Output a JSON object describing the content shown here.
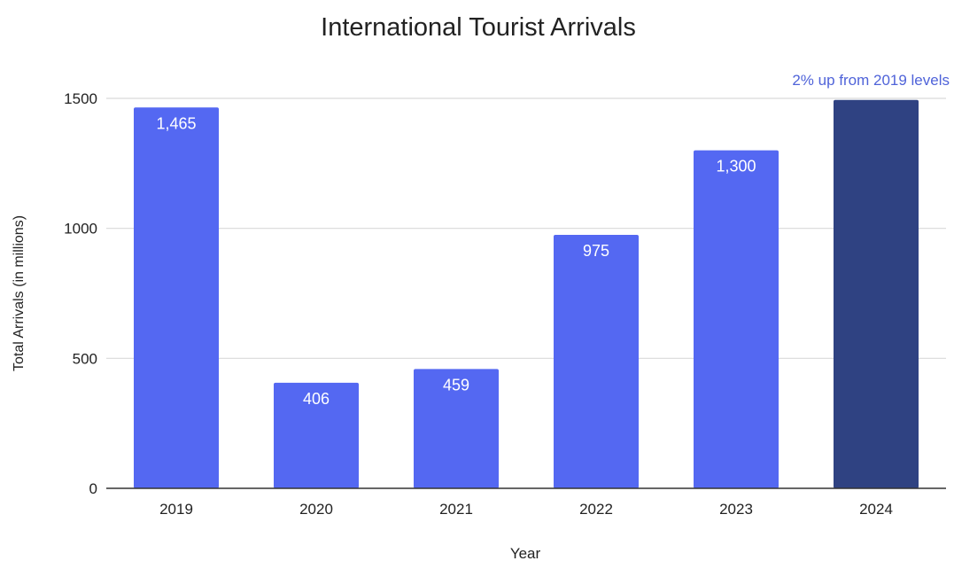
{
  "chart_data": {
    "type": "bar",
    "title": "International Tourist Arrivals",
    "xlabel": "Year",
    "ylabel": "Total Arrivals (in millions)",
    "categories": [
      "2019",
      "2020",
      "2021",
      "2022",
      "2023",
      "2024"
    ],
    "values": [
      1465,
      406,
      459,
      975,
      1300,
      1494
    ],
    "data_labels": [
      "1,465",
      "406",
      "459",
      "975",
      "1,300",
      ""
    ],
    "ylim": [
      0,
      1500
    ],
    "yticks": [
      0,
      500,
      1000,
      1500
    ],
    "grid": true,
    "colors": {
      "bar": "#5468f2",
      "highlight_bar": "#2f4282",
      "annotation": "#4f63d9",
      "grid": "#d9d9d9",
      "axis": "#333333",
      "text": "#222222"
    },
    "highlight_index": 5,
    "annotation": "2% up from 2019 levels"
  }
}
